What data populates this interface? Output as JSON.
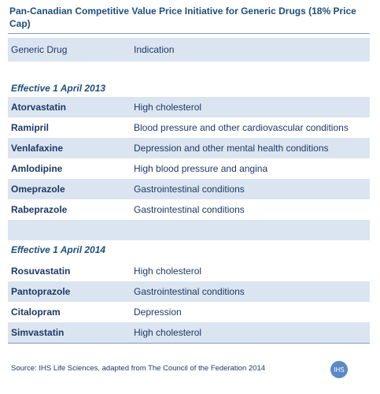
{
  "title": "Pan-Canadian Competitive Value Price Initiative for Generic Drugs (18% Price Cap)",
  "table": {
    "header": [
      "Generic Drug",
      "Indication"
    ],
    "sections": [
      {
        "heading": "Effective 1 April 2013",
        "rows": [
          [
            "Atorvastatin",
            "High cholesterol"
          ],
          [
            "Ramipril",
            "Blood pressure and other cardiovascular conditions"
          ],
          [
            "Venlafaxine",
            "Depression and other mental health conditions"
          ],
          [
            "Amlodipine",
            "High blood pressure and angina"
          ],
          [
            "Omeprazole",
            "Gastrointestinal conditions"
          ],
          [
            "Rabeprazole",
            "Gastrointestinal conditions"
          ]
        ]
      },
      {
        "heading": "Effective 1 April 2014",
        "rows": [
          [
            "Rosuvastatin",
            "High cholesterol"
          ],
          [
            "Pantoprazole",
            "Gastrointestinal conditions"
          ],
          [
            "Citalopram",
            "Depression"
          ],
          [
            "Simvastatin",
            "High cholesterol"
          ]
        ]
      }
    ]
  },
  "footer": {
    "source": "Source: IHS Life Sciences, adapted from The Council of the Federation 2014",
    "logo": "IHS"
  }
}
